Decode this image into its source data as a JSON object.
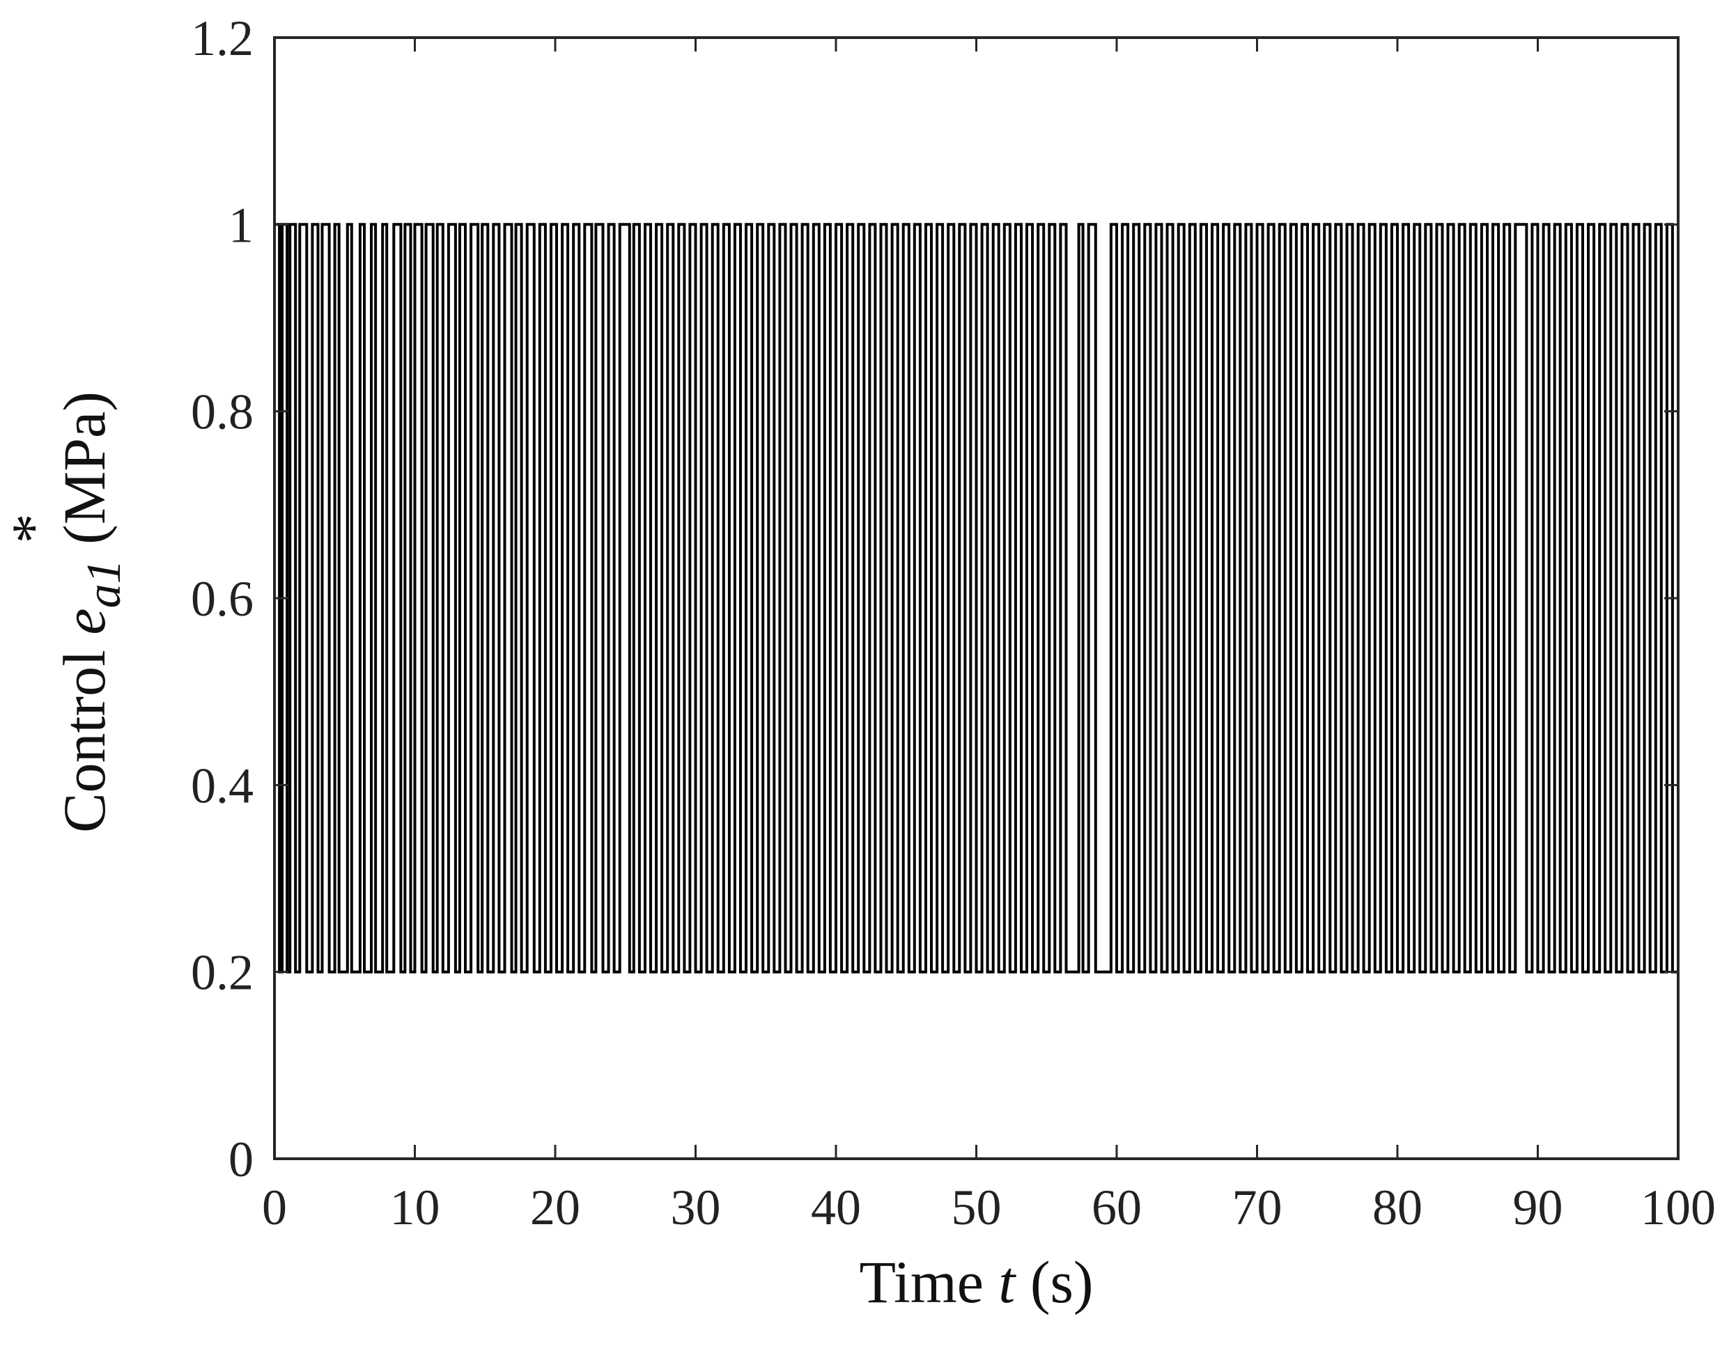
{
  "chart_data": {
    "type": "line",
    "title": "",
    "xlabel": {
      "prefix": "Time ",
      "variable": "t",
      "unit": " (s)"
    },
    "ylabel": {
      "prefix": "Control ",
      "variable": "e",
      "superscript": "*",
      "subscript": "a1",
      "unit": " (MPa)"
    },
    "xlim": [
      0,
      100
    ],
    "ylim": [
      0,
      1.2
    ],
    "xticks": [
      0,
      10,
      20,
      30,
      40,
      50,
      60,
      70,
      80,
      90,
      100
    ],
    "xtick_labels": [
      "0",
      "10",
      "20",
      "30",
      "40",
      "50",
      "60",
      "70",
      "80",
      "90",
      "100"
    ],
    "yticks": [
      0,
      0.2,
      0.4,
      0.6,
      0.8,
      1.0,
      1.2
    ],
    "ytick_labels": [
      "0",
      "0.2",
      "0.4",
      "0.6",
      "0.8",
      "1",
      "1.2"
    ],
    "grid": false,
    "legend": "none",
    "series": [
      {
        "color": "#000000",
        "signal": "bang-bang switching between two levels",
        "levels": [
          0.2,
          1.0
        ],
        "switch_times": [
          0.0,
          0.35,
          0.55,
          0.9,
          1.1,
          1.5,
          1.8,
          2.3,
          2.7,
          3.1,
          3.4,
          3.9,
          4.3,
          4.6,
          5.2,
          5.5,
          6.1,
          6.4,
          6.9,
          7.2,
          7.7,
          8.0,
          8.5,
          9.0,
          9.3,
          9.7,
          10.0,
          10.5,
          10.8,
          11.3,
          11.6,
          12.0,
          12.4,
          12.9,
          13.2,
          13.6,
          14.0,
          14.5,
          14.8,
          15.2,
          15.6,
          16.0,
          16.4,
          16.9,
          17.2,
          17.6,
          18.0,
          18.5,
          18.9,
          19.3,
          19.7,
          20.1,
          20.5,
          20.9,
          21.3,
          21.7,
          22.1,
          22.6,
          22.9,
          23.4,
          23.8,
          24.2,
          24.6,
          25.3,
          25.6,
          26.0,
          26.4,
          26.8,
          27.2,
          27.6,
          28.0,
          28.4,
          28.8,
          29.2,
          29.6,
          30.0,
          30.4,
          30.8,
          31.2,
          31.6,
          32.0,
          32.4,
          32.8,
          33.2,
          33.6,
          34.0,
          34.4,
          34.8,
          35.2,
          35.6,
          36.0,
          36.4,
          36.8,
          37.2,
          37.6,
          38.0,
          38.4,
          38.8,
          39.2,
          39.6,
          40.0,
          40.4,
          40.8,
          41.2,
          41.6,
          42.0,
          42.4,
          42.8,
          43.2,
          43.6,
          44.0,
          44.4,
          44.8,
          45.2,
          45.6,
          46.0,
          46.4,
          46.8,
          47.2,
          47.6,
          48.0,
          48.4,
          48.8,
          49.2,
          49.6,
          50.0,
          50.4,
          50.8,
          51.2,
          51.6,
          52.0,
          52.4,
          52.8,
          53.2,
          53.6,
          54.0,
          54.4,
          54.8,
          55.2,
          55.6,
          56.0,
          56.4,
          57.3,
          57.6,
          58.0,
          58.5,
          59.6,
          60.0,
          60.4,
          60.8,
          61.2,
          61.6,
          62.0,
          62.4,
          62.8,
          63.2,
          63.6,
          64.0,
          64.4,
          64.8,
          65.2,
          65.6,
          66.0,
          66.4,
          66.8,
          67.2,
          67.6,
          68.0,
          68.4,
          68.8,
          69.2,
          69.6,
          70.0,
          70.4,
          70.8,
          71.2,
          71.6,
          72.0,
          72.4,
          72.8,
          73.2,
          73.6,
          74.0,
          74.4,
          74.8,
          75.2,
          75.6,
          76.0,
          76.4,
          76.8,
          77.2,
          77.6,
          78.0,
          78.4,
          78.8,
          79.2,
          79.6,
          80.0,
          80.4,
          80.8,
          81.2,
          81.6,
          82.0,
          82.4,
          82.8,
          83.2,
          83.6,
          84.0,
          84.4,
          84.8,
          85.2,
          85.6,
          86.0,
          86.4,
          86.8,
          87.2,
          87.6,
          88.0,
          88.4,
          89.2,
          89.6,
          90.0,
          90.4,
          90.8,
          91.2,
          91.6,
          92.0,
          92.4,
          92.8,
          93.2,
          93.6,
          94.0,
          94.4,
          94.8,
          95.2,
          95.6,
          96.0,
          96.4,
          96.8,
          97.2,
          97.6,
          98.0,
          98.4,
          98.8,
          99.2,
          99.6,
          100.0
        ]
      }
    ]
  }
}
